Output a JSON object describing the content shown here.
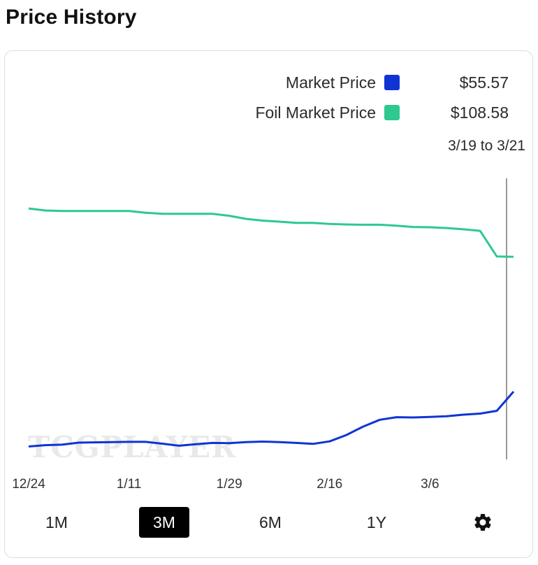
{
  "page": {
    "title": "Price History"
  },
  "legend": [
    {
      "label": "Market Price",
      "value": "$55.57",
      "color": "#1034d4"
    },
    {
      "label": "Foil Market Price",
      "value": "$108.58",
      "color": "#2dc98f"
    }
  ],
  "date_range": "3/19 to 3/21",
  "watermark": "TCGPLAYER",
  "range_buttons": [
    {
      "label": "1M",
      "active": false
    },
    {
      "label": "3M",
      "active": true
    },
    {
      "label": "6M",
      "active": false
    },
    {
      "label": "1Y",
      "active": false
    }
  ],
  "settings_icon": "gear-icon",
  "chart_data": {
    "type": "line",
    "title": "",
    "xlabel": "",
    "ylabel": "",
    "x_tick_labels": [
      "12/24",
      "1/11",
      "1/29",
      "2/16",
      "3/6"
    ],
    "x": [
      "12/24",
      "12/27",
      "12/30",
      "1/2",
      "1/5",
      "1/8",
      "1/11",
      "1/14",
      "1/17",
      "1/20",
      "1/23",
      "1/26",
      "1/29",
      "2/1",
      "2/4",
      "2/7",
      "2/10",
      "2/13",
      "2/16",
      "2/19",
      "2/22",
      "2/25",
      "2/28",
      "3/3",
      "3/6",
      "3/9",
      "3/12",
      "3/15",
      "3/18",
      "3/21"
    ],
    "series": [
      {
        "name": "Market Price",
        "color": "#1034d4",
        "values": [
          34,
          34.5,
          34.7,
          35.5,
          35.6,
          35.7,
          35.8,
          35.8,
          35.1,
          34.3,
          34.9,
          35.4,
          35.3,
          35.7,
          35.9,
          35.7,
          35.4,
          35.0,
          36.0,
          38.5,
          41.8,
          44.5,
          45.5,
          45.4,
          45.6,
          45.9,
          46.5,
          46.9,
          48.0,
          55.57
        ]
      },
      {
        "name": "Foil Market Price",
        "color": "#2dc98f",
        "values": [
          127.6,
          126.8,
          126.6,
          126.6,
          126.6,
          126.6,
          126.6,
          125.9,
          125.5,
          125.5,
          125.5,
          125.5,
          124.7,
          123.5,
          122.8,
          122.4,
          121.9,
          121.9,
          121.5,
          121.3,
          121.2,
          121.2,
          120.8,
          120.3,
          120.2,
          119.9,
          119.4,
          118.8,
          108.7,
          108.58
        ]
      }
    ],
    "hover_marker": "3/21",
    "grid": false,
    "legend_position": "top-right"
  }
}
